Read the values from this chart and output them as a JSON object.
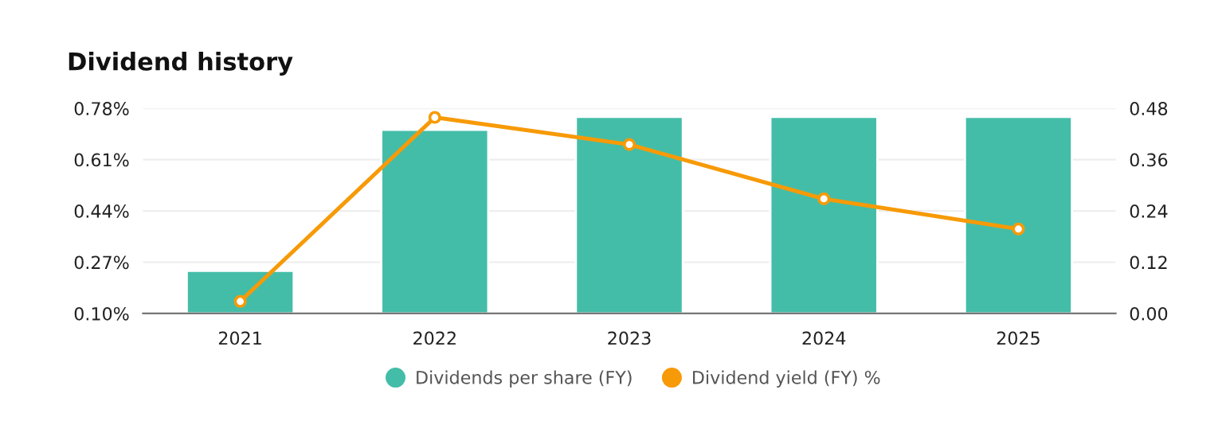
{
  "chart_data": {
    "type": "bar",
    "title": "Dividend history",
    "categories": [
      "2021",
      "2022",
      "2023",
      "2024",
      "2025"
    ],
    "series": [
      {
        "name": "Dividends per share (FY)",
        "axis": "y2",
        "color": "#44bda8",
        "values": [
          0.1,
          0.43,
          0.46,
          0.46,
          0.46
        ]
      },
      {
        "name": "Dividend yield (FY) %",
        "type": "line",
        "axis": "y",
        "color": "#f79a07",
        "marker": "circle",
        "values": [
          0.14,
          0.75,
          0.66,
          0.48,
          0.38
        ]
      }
    ],
    "ylim": [
      0.1,
      0.78
    ],
    "yticks": [
      {
        "value": 0.1,
        "label": "0.10%"
      },
      {
        "value": 0.27,
        "label": "0.27%"
      },
      {
        "value": 0.44,
        "label": "0.44%"
      },
      {
        "value": 0.61,
        "label": "0.61%"
      },
      {
        "value": 0.78,
        "label": "0.78%"
      }
    ],
    "y2lim": [
      0,
      0.48
    ],
    "y2ticks": [
      {
        "value": 0,
        "label": "0.00"
      },
      {
        "value": 0.12,
        "label": "0.12"
      },
      {
        "value": 0.24,
        "label": "0.24"
      },
      {
        "value": 0.36,
        "label": "0.36"
      },
      {
        "value": 0.48,
        "label": "0.48"
      }
    ],
    "grid": "y",
    "legend": "bottom"
  }
}
